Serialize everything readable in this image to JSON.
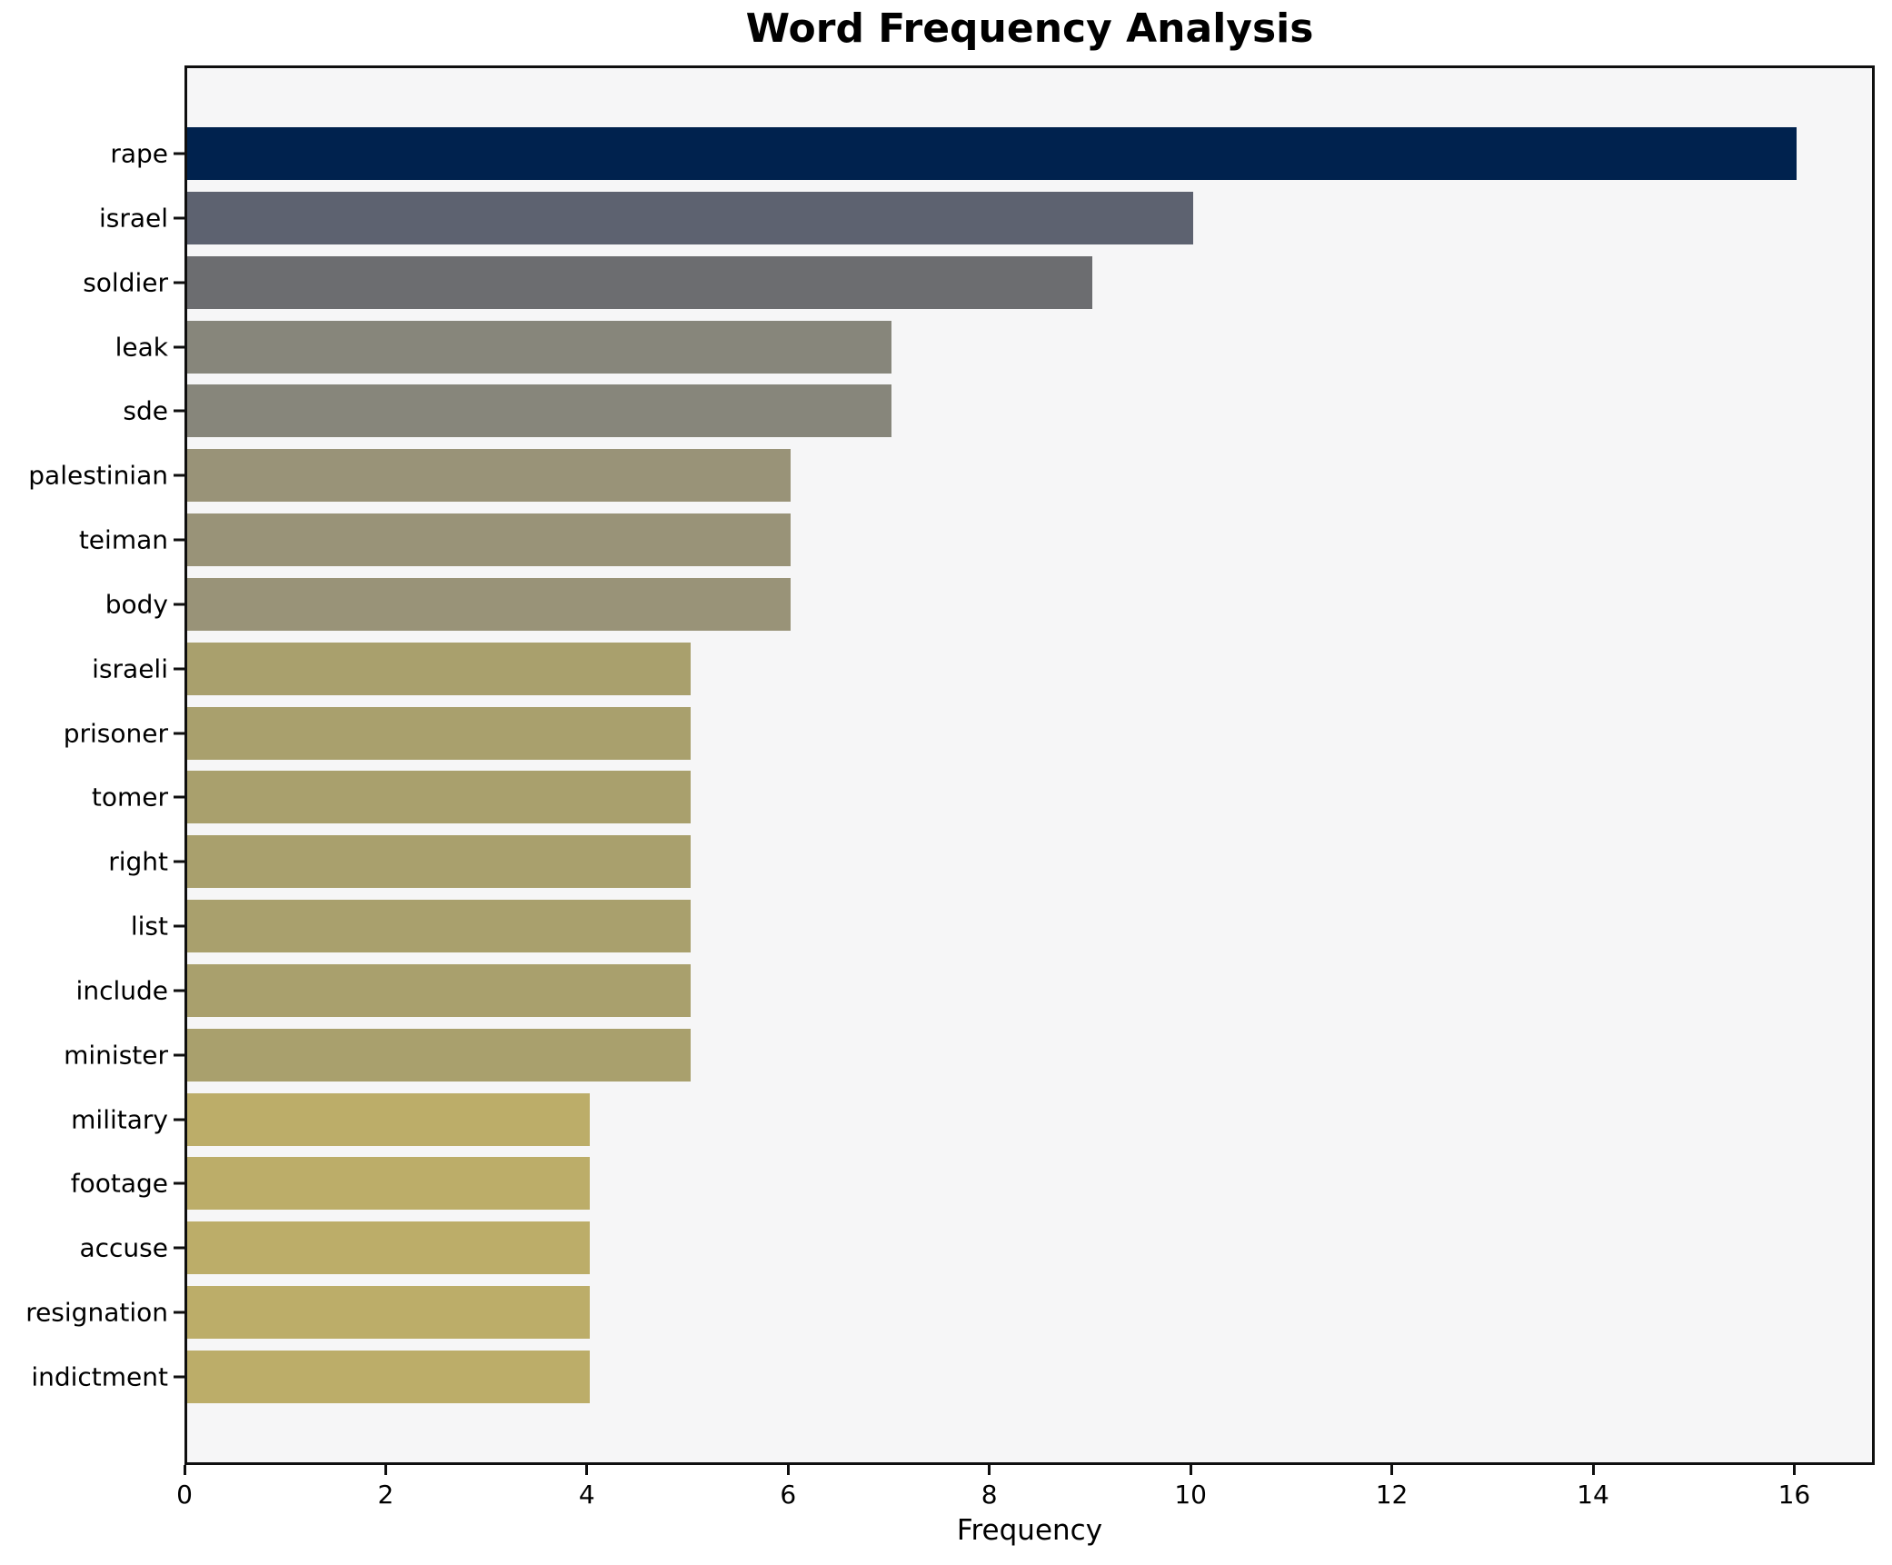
{
  "chart_data": {
    "type": "bar",
    "orientation": "horizontal",
    "title": "Word Frequency Analysis",
    "xlabel": "Frequency",
    "ylabel": "",
    "categories": [
      "rape",
      "israel",
      "soldier",
      "leak",
      "sde",
      "palestinian",
      "teiman",
      "body",
      "israeli",
      "prisoner",
      "tomer",
      "right",
      "list",
      "include",
      "minister",
      "military",
      "footage",
      "accuse",
      "resignation",
      "indictment"
    ],
    "values": [
      16,
      10,
      9,
      7,
      7,
      6,
      6,
      6,
      5,
      5,
      5,
      5,
      5,
      5,
      5,
      4,
      4,
      4,
      4,
      4
    ],
    "bar_colors": [
      "#00224e",
      "#5d6270",
      "#6c6d70",
      "#87867b",
      "#87867b",
      "#999378",
      "#999378",
      "#999378",
      "#a9a06d",
      "#a9a06d",
      "#a9a06d",
      "#a9a06d",
      "#a9a06d",
      "#a9a06d",
      "#a9a06d",
      "#bcad69",
      "#bcad69",
      "#bcad69",
      "#bcad69",
      "#bcad69"
    ],
    "xticks": [
      0,
      2,
      4,
      6,
      8,
      10,
      12,
      14,
      16
    ],
    "xlim": [
      0,
      16.8
    ],
    "grid": false,
    "legend": null,
    "plot_bg_color": "#f6f6f7",
    "figure_bg_color": "#ffffff",
    "spine_color": "#0f0f0f",
    "text_color": "#000000"
  }
}
